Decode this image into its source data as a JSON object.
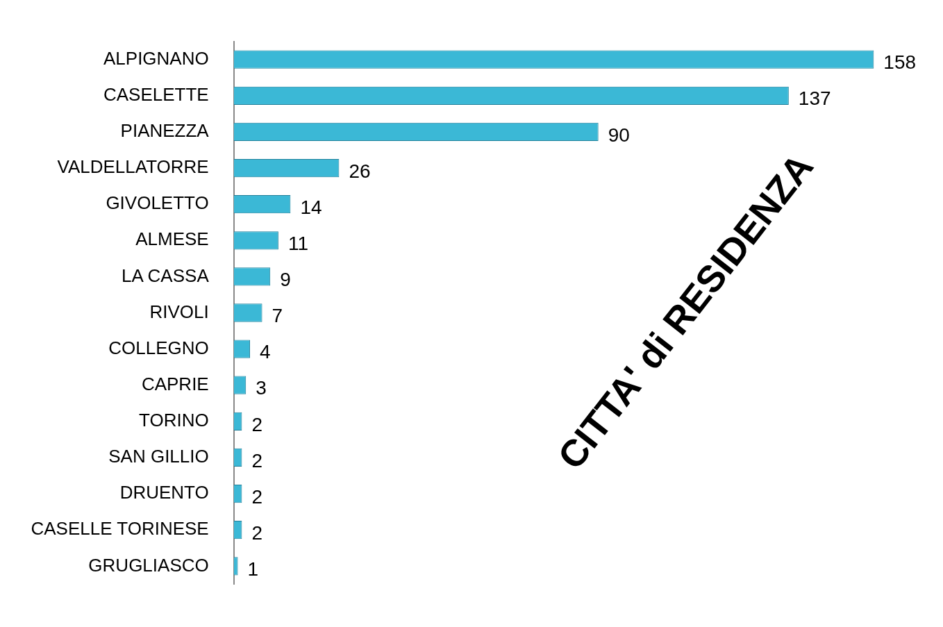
{
  "chart_data": {
    "type": "bar",
    "orientation": "horizontal",
    "title": "CITTA' di RESIDENZA",
    "categories": [
      "ALPIGNANO",
      "CASELETTE",
      "PIANEZZA",
      "VALDELLATORRE",
      "GIVOLETTO",
      "ALMESE",
      "LA CASSA",
      "RIVOLI",
      "COLLEGNO",
      "CAPRIE",
      "TORINO",
      "SAN GILLIO",
      "DRUENTO",
      "CASELLE TORINESE",
      "GRUGLIASCO"
    ],
    "values": [
      158,
      137,
      90,
      26,
      14,
      11,
      9,
      7,
      4,
      3,
      2,
      2,
      2,
      2,
      1
    ],
    "color": "#3bb8d6",
    "tick_labels": "y",
    "data_labels": true,
    "grid": false,
    "legend": false
  }
}
